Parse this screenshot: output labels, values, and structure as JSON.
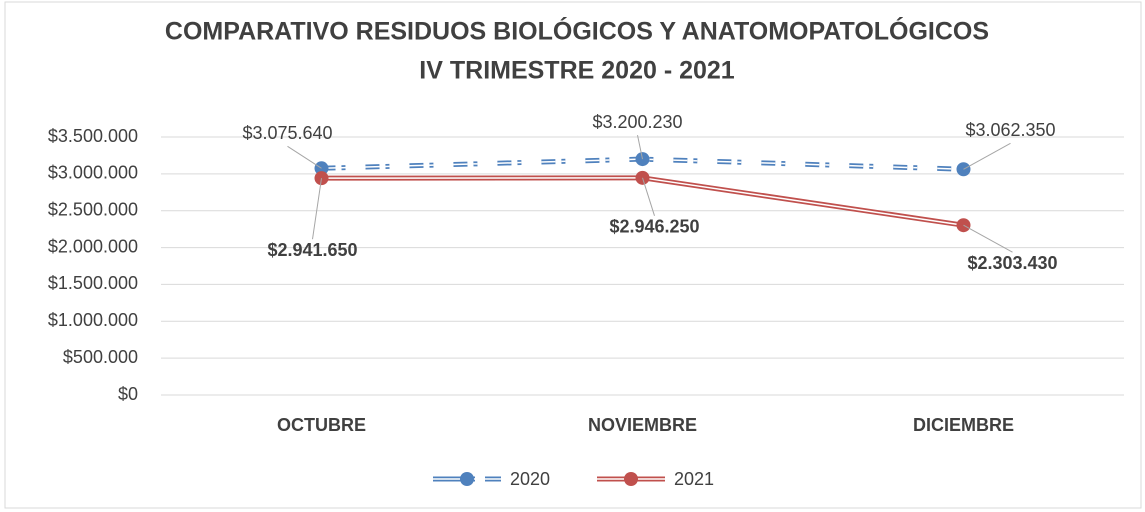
{
  "chart_data": {
    "type": "line",
    "title": [
      "COMPARATIVO RESIDUOS BIOLÓGICOS Y ANATOMOPATOLÓGICOS",
      "IV TRIMESTRE 2020 - 2021"
    ],
    "categories": [
      "OCTUBRE",
      "NOVIEMBRE",
      "DICIEMBRE"
    ],
    "series": [
      {
        "name": "2020",
        "color": "#4f81bd",
        "values": [
          3075640,
          3200230,
          3062350
        ],
        "value_labels": [
          "$3.075.640",
          "$3.200.230",
          "$3.062.350"
        ]
      },
      {
        "name": "2021",
        "color": "#c0504d",
        "values": [
          2941650,
          2946250,
          2303430
        ],
        "value_labels": [
          "$2.941.650",
          "$2.946.250",
          "$2.303.430"
        ]
      }
    ],
    "ylim": [
      0,
      3500000
    ],
    "yticks": [
      {
        "value": 0,
        "label": "$0"
      },
      {
        "value": 500000,
        "label": "$500.000"
      },
      {
        "value": 1000000,
        "label": "$1.000.000"
      },
      {
        "value": 1500000,
        "label": "$1.500.000"
      },
      {
        "value": 2000000,
        "label": "$2.000.000"
      },
      {
        "value": 2500000,
        "label": "$2.500.000"
      },
      {
        "value": 3000000,
        "label": "$3.000.000"
      },
      {
        "value": 3500000,
        "label": "$3.500.000"
      }
    ],
    "grid": true,
    "legend": "bottom"
  }
}
